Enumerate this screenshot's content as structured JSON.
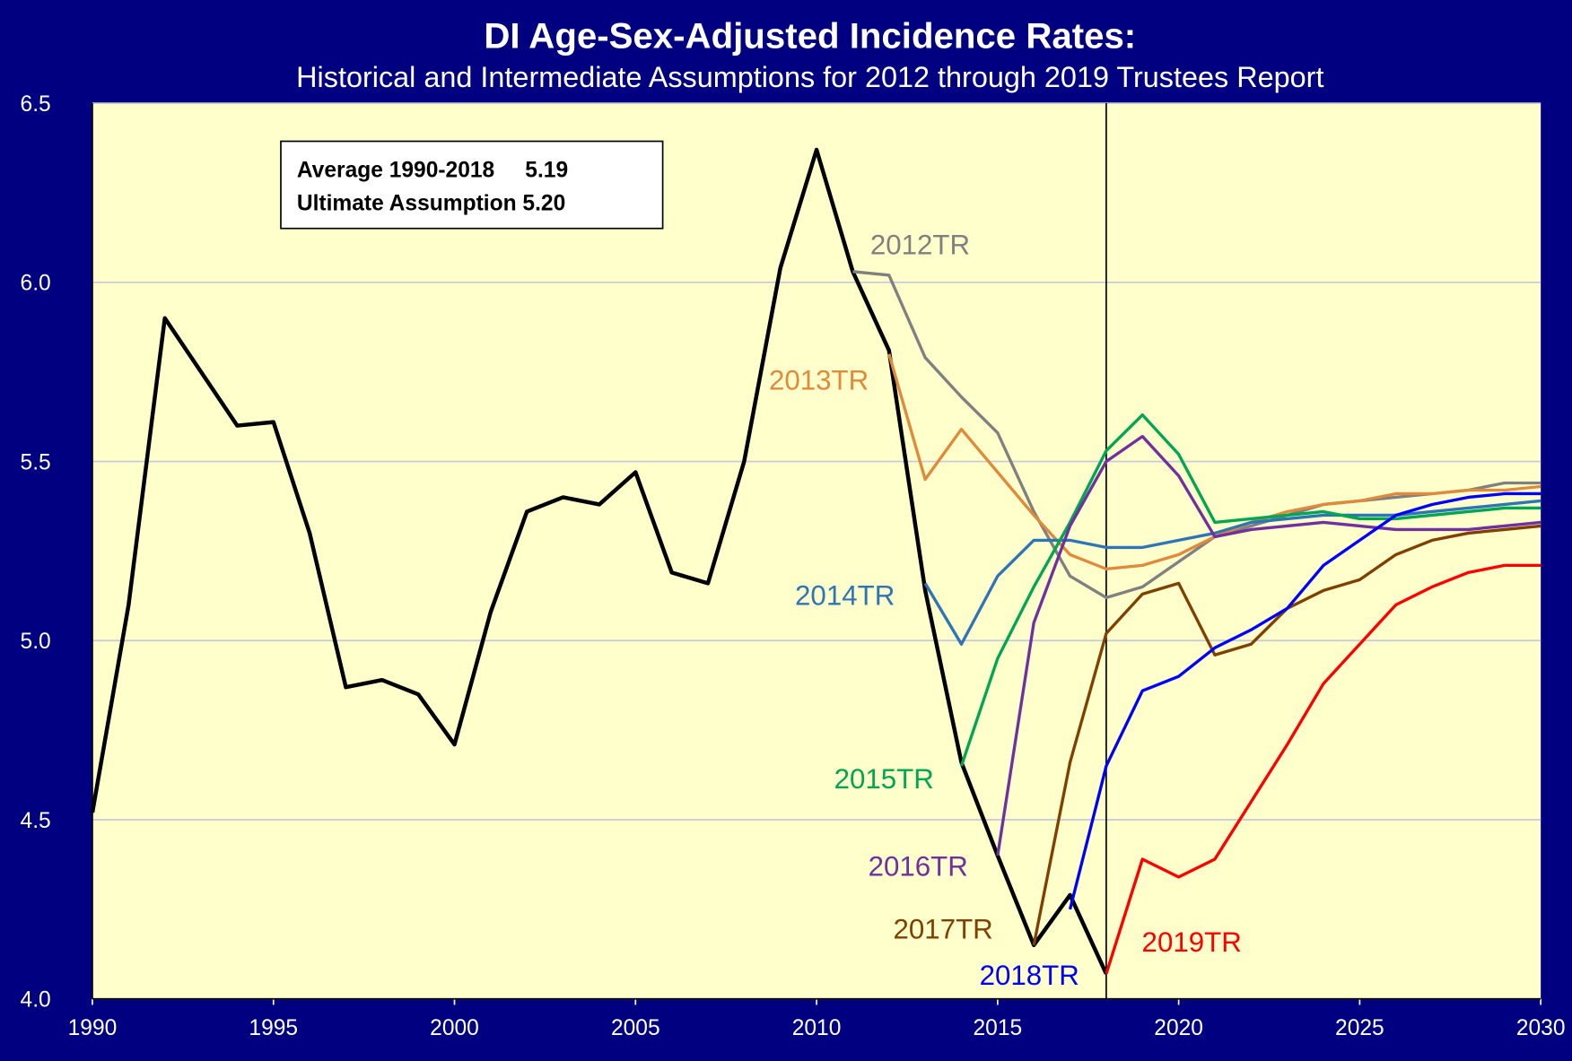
{
  "chart_data": {
    "type": "line",
    "title": "DI Age-Sex-Adjusted Incidence Rates:",
    "subtitle": "Historical and Intermediate Assumptions for 2012 through 2019 Trustees Report",
    "annotations": [
      "Average 1990-2018     5.19",
      "Ultimate Assumption 5.20"
    ],
    "reference_line_x": 2018,
    "x": [
      1990,
      1991,
      1992,
      1993,
      1994,
      1995,
      1996,
      1997,
      1998,
      1999,
      2000,
      2001,
      2002,
      2003,
      2004,
      2005,
      2006,
      2007,
      2008,
      2009,
      2010,
      2011,
      2012,
      2013,
      2014,
      2015,
      2016,
      2017,
      2018,
      2019,
      2020,
      2021,
      2022,
      2023,
      2024,
      2025,
      2026,
      2027,
      2028,
      2029,
      2030
    ],
    "series": [
      {
        "color": "#000000",
        "values": [
          4.52,
          5.1,
          5.9,
          5.75,
          5.6,
          5.61,
          5.3,
          4.87,
          4.89,
          4.85,
          4.71,
          5.08,
          5.36,
          5.4,
          5.38,
          5.47,
          5.19,
          5.16,
          5.5,
          6.04,
          6.37,
          6.03,
          5.81,
          5.14,
          4.66,
          4.4,
          4.15,
          4.29,
          4.07,
          null,
          null,
          null,
          null,
          null,
          null,
          null,
          null,
          null,
          null,
          null,
          null
        ]
      },
      {
        "name": "2012TR",
        "color": "#808080",
        "values": [
          null,
          null,
          null,
          null,
          null,
          null,
          null,
          null,
          null,
          null,
          null,
          null,
          null,
          null,
          null,
          null,
          null,
          null,
          null,
          null,
          null,
          6.03,
          6.02,
          5.79,
          5.68,
          5.58,
          5.36,
          5.18,
          5.12,
          5.15,
          5.22,
          5.29,
          5.32,
          5.35,
          5.38,
          5.39,
          5.4,
          5.41,
          5.42,
          5.44,
          5.44
        ]
      },
      {
        "name": "2013TR",
        "color": "#e08a3c",
        "values": [
          null,
          null,
          null,
          null,
          null,
          null,
          null,
          null,
          null,
          null,
          null,
          null,
          null,
          null,
          null,
          null,
          null,
          null,
          null,
          null,
          null,
          null,
          5.8,
          5.45,
          5.59,
          5.47,
          5.35,
          5.24,
          5.2,
          5.21,
          5.24,
          5.29,
          5.33,
          5.36,
          5.38,
          5.39,
          5.41,
          5.41,
          5.42,
          5.42,
          5.43
        ]
      },
      {
        "name": "2014TR",
        "color": "#2e75b6",
        "values": [
          null,
          null,
          null,
          null,
          null,
          null,
          null,
          null,
          null,
          null,
          null,
          null,
          null,
          null,
          null,
          null,
          null,
          null,
          null,
          null,
          null,
          null,
          null,
          5.16,
          4.99,
          5.18,
          5.28,
          5.28,
          5.26,
          5.26,
          5.28,
          5.3,
          5.33,
          5.34,
          5.35,
          5.35,
          5.35,
          5.36,
          5.37,
          5.38,
          5.39
        ]
      },
      {
        "name": "2015TR",
        "color": "#00a651",
        "values": [
          null,
          null,
          null,
          null,
          null,
          null,
          null,
          null,
          null,
          null,
          null,
          null,
          null,
          null,
          null,
          null,
          null,
          null,
          null,
          null,
          null,
          null,
          null,
          null,
          4.65,
          4.95,
          5.15,
          5.33,
          5.53,
          5.63,
          5.52,
          5.33,
          5.34,
          5.35,
          5.36,
          5.34,
          5.34,
          5.35,
          5.36,
          5.37,
          5.37
        ]
      },
      {
        "name": "2016TR",
        "color": "#7030a0",
        "values": [
          null,
          null,
          null,
          null,
          null,
          null,
          null,
          null,
          null,
          null,
          null,
          null,
          null,
          null,
          null,
          null,
          null,
          null,
          null,
          null,
          null,
          null,
          null,
          null,
          null,
          4.4,
          5.05,
          5.32,
          5.5,
          5.57,
          5.46,
          5.29,
          5.31,
          5.32,
          5.33,
          5.32,
          5.31,
          5.31,
          5.31,
          5.32,
          5.33
        ]
      },
      {
        "name": "2017TR",
        "color": "#7f4000",
        "values": [
          null,
          null,
          null,
          null,
          null,
          null,
          null,
          null,
          null,
          null,
          null,
          null,
          null,
          null,
          null,
          null,
          null,
          null,
          null,
          null,
          null,
          null,
          null,
          null,
          null,
          null,
          4.15,
          4.66,
          5.02,
          5.13,
          5.16,
          4.96,
          4.99,
          5.09,
          5.14,
          5.17,
          5.24,
          5.28,
          5.3,
          5.31,
          5.32
        ]
      },
      {
        "name": "2018TR",
        "color": "#0000ff",
        "values": [
          null,
          null,
          null,
          null,
          null,
          null,
          null,
          null,
          null,
          null,
          null,
          null,
          null,
          null,
          null,
          null,
          null,
          null,
          null,
          null,
          null,
          null,
          null,
          null,
          null,
          null,
          null,
          4.25,
          4.65,
          4.86,
          4.9,
          4.98,
          5.03,
          5.09,
          5.21,
          5.28,
          5.35,
          5.38,
          5.4,
          5.41,
          5.41
        ]
      },
      {
        "name": "2019TR",
        "color": "#ff0000",
        "values": [
          null,
          null,
          null,
          null,
          null,
          null,
          null,
          null,
          null,
          null,
          null,
          null,
          null,
          null,
          null,
          null,
          null,
          null,
          null,
          null,
          null,
          null,
          null,
          null,
          null,
          null,
          null,
          null,
          4.07,
          4.39,
          4.34,
          4.39,
          4.55,
          4.71,
          4.88,
          4.99,
          5.1,
          5.15,
          5.19,
          5.21,
          5.21
        ]
      }
    ],
    "xlim": [
      1990,
      2030
    ],
    "xticks": [
      1990,
      1995,
      2000,
      2005,
      2010,
      2015,
      2020,
      2025,
      2030
    ],
    "ylim": [
      4.0,
      6.5
    ],
    "yticks": [
      {
        "value": 4,
        "label": "4.0"
      },
      4.5,
      {
        "value": 5,
        "label": "5.0"
      },
      5.5,
      {
        "value": 6,
        "label": "6.0"
      },
      6.5
    ],
    "grid": true
  }
}
